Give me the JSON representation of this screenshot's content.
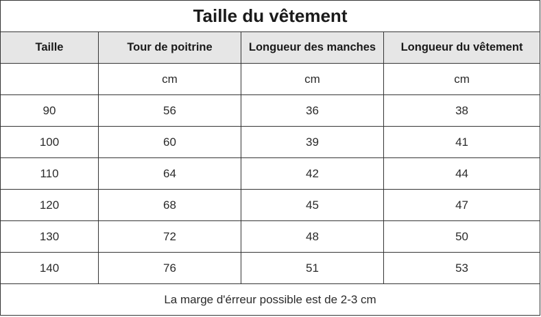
{
  "title": "Taille du vêtement",
  "headers": [
    "Taille",
    "Tour de poitrine",
    "Longueur des manches",
    "Longueur du vêtement"
  ],
  "rows": [
    [
      "",
      "cm",
      "cm",
      "cm"
    ],
    [
      "90",
      "56",
      "36",
      "38"
    ],
    [
      "100",
      "60",
      "39",
      "41"
    ],
    [
      "110",
      "64",
      "42",
      "44"
    ],
    [
      "120",
      "68",
      "45",
      "47"
    ],
    [
      "130",
      "72",
      "48",
      "50"
    ],
    [
      "140",
      "76",
      "51",
      "53"
    ]
  ],
  "note": "La marge d'érreur possible est de 2-3 cm",
  "colors": {
    "border": "#333333",
    "header_background": "#e6e6e6",
    "background": "#ffffff"
  }
}
